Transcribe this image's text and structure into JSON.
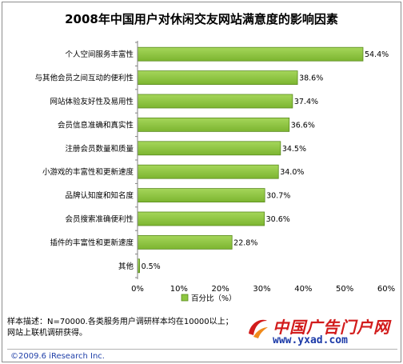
{
  "chart_data": {
    "type": "bar",
    "orientation": "horizontal",
    "title": "2008年中国用户对休闲交友网站满意度的影响因素",
    "categories": [
      "个人空间服务丰富性",
      "与其他会员之间互动的便利性",
      "网站体验友好性及易用性",
      "会员信息准确和真实性",
      "注册会员数量和质量",
      "小游戏的丰富性和更新速度",
      "品牌认知度和知名度",
      "会员搜索准确便利性",
      "插件的丰富性和更新速度",
      "其他"
    ],
    "values": [
      54.4,
      38.6,
      37.4,
      36.6,
      34.5,
      34.0,
      30.7,
      30.6,
      22.8,
      0.5
    ],
    "value_labels": [
      "54.4%",
      "38.6%",
      "37.4%",
      "36.6%",
      "34.5%",
      "34.0%",
      "30.7%",
      "30.6%",
      "22.8%",
      "0.5%"
    ],
    "xlim": [
      0,
      60
    ],
    "x_ticks": [
      "0%",
      "10%",
      "20%",
      "30%",
      "40%",
      "50%",
      "60%"
    ],
    "grid": false,
    "legend": {
      "position": "bottom",
      "entries": [
        "百分比（%）"
      ]
    },
    "bar_color": "#8dc63f"
  },
  "notes": {
    "line1": "样本描述：N=70000.各类服务用户调研样本均在10000以上；",
    "line2": "网站上联机调研获得。"
  },
  "copyright": "©2009.6 iResearch Inc.",
  "watermark": {
    "name": "中国广告门户网",
    "url": "www.yxad.com"
  }
}
